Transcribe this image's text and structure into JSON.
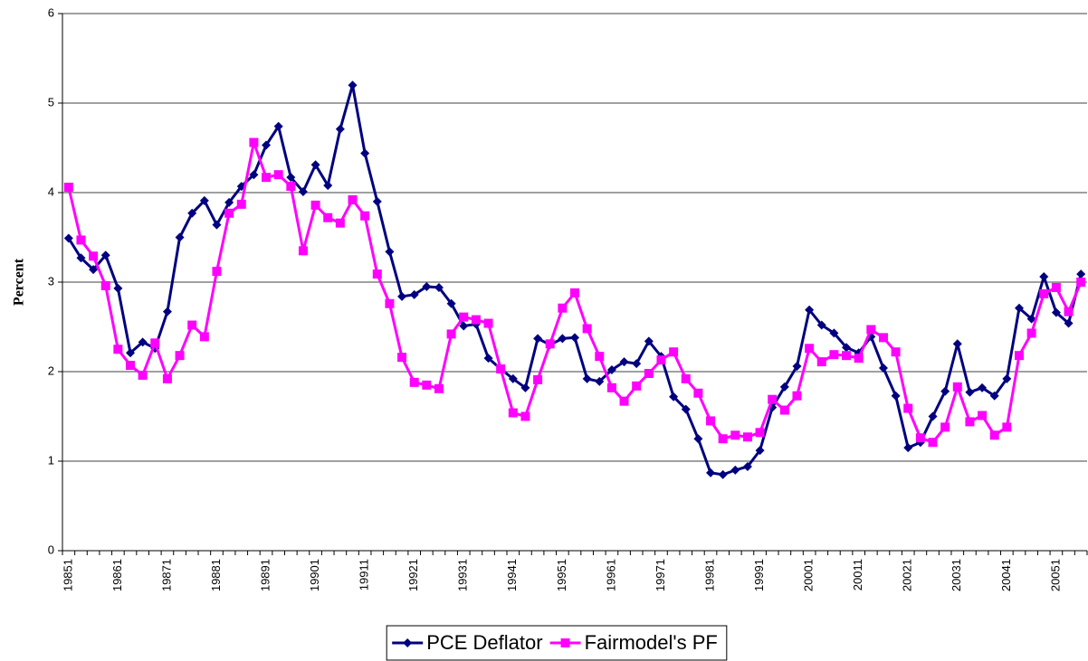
{
  "chart_data": {
    "type": "line",
    "y_label": "Percent",
    "categories": [
      "19851",
      null,
      null,
      null,
      "19861",
      null,
      null,
      null,
      "19871",
      null,
      null,
      null,
      "19881",
      null,
      null,
      null,
      "19891",
      null,
      null,
      null,
      "19901",
      null,
      null,
      null,
      "19911",
      null,
      null,
      null,
      "19921",
      null,
      null,
      null,
      "19931",
      null,
      null,
      null,
      "19941",
      null,
      null,
      null,
      "19951",
      null,
      null,
      null,
      "19961",
      null,
      null,
      null,
      "19971",
      null,
      null,
      null,
      "19981",
      null,
      null,
      null,
      "19991",
      null,
      null,
      null,
      "20001",
      null,
      null,
      null,
      "20011",
      null,
      null,
      null,
      "20021",
      null,
      null,
      null,
      "20031",
      null,
      null,
      null,
      "20041",
      null,
      null,
      null,
      "20051",
      null,
      null
    ],
    "series": [
      {
        "name": "PCE Deflator",
        "color": "#000080",
        "marker": "diamond",
        "values": [
          3.49,
          3.27,
          3.14,
          3.3,
          2.93,
          2.21,
          2.33,
          2.26,
          2.67,
          3.5,
          3.77,
          3.91,
          3.64,
          3.89,
          4.07,
          4.2,
          4.53,
          4.74,
          4.17,
          4.01,
          4.31,
          4.08,
          4.71,
          5.2,
          4.44,
          3.9,
          3.34,
          2.84,
          2.86,
          2.95,
          2.94,
          2.76,
          2.51,
          2.53,
          2.15,
          2.03,
          1.92,
          1.82,
          2.37,
          2.3,
          2.37,
          2.38,
          1.92,
          1.89,
          2.02,
          2.11,
          2.09,
          2.34,
          2.17,
          1.72,
          1.58,
          1.25,
          0.87,
          0.85,
          0.9,
          0.94,
          1.12,
          1.6,
          1.83,
          2.06,
          2.69,
          2.52,
          2.43,
          2.27,
          2.21,
          2.39,
          2.04,
          1.73,
          1.15,
          1.21,
          1.5,
          1.78,
          2.31,
          1.77,
          1.82,
          1.73,
          1.92,
          2.71,
          2.59,
          3.06,
          2.66,
          2.54,
          3.09
        ]
      },
      {
        "name": "Fairmodel's PF",
        "color": "#ff00ff",
        "marker": "square",
        "values": [
          4.06,
          3.47,
          3.29,
          2.96,
          2.25,
          2.07,
          1.96,
          2.32,
          1.92,
          2.18,
          2.52,
          2.39,
          3.12,
          3.77,
          3.87,
          4.56,
          4.17,
          4.2,
          4.07,
          3.35,
          3.86,
          3.72,
          3.66,
          3.92,
          3.74,
          3.09,
          2.76,
          2.16,
          1.88,
          1.85,
          1.81,
          2.42,
          2.61,
          2.58,
          2.54,
          2.03,
          1.54,
          1.5,
          1.91,
          2.31,
          2.71,
          2.88,
          2.48,
          2.17,
          1.82,
          1.67,
          1.84,
          1.98,
          2.13,
          2.22,
          1.92,
          1.76,
          1.45,
          1.25,
          1.29,
          1.27,
          1.32,
          1.69,
          1.57,
          1.73,
          2.26,
          2.11,
          2.19,
          2.18,
          2.15,
          2.47,
          2.38,
          2.22,
          1.59,
          1.26,
          1.21,
          1.38,
          1.83,
          1.44,
          1.51,
          1.29,
          1.38,
          2.18,
          2.43,
          2.87,
          2.94,
          2.67,
          3.0
        ]
      }
    ],
    "ylim": [
      0,
      6
    ],
    "yticks": [
      0,
      1,
      2,
      3,
      4,
      5,
      6
    ],
    "grid": true,
    "legend": "bottom"
  }
}
